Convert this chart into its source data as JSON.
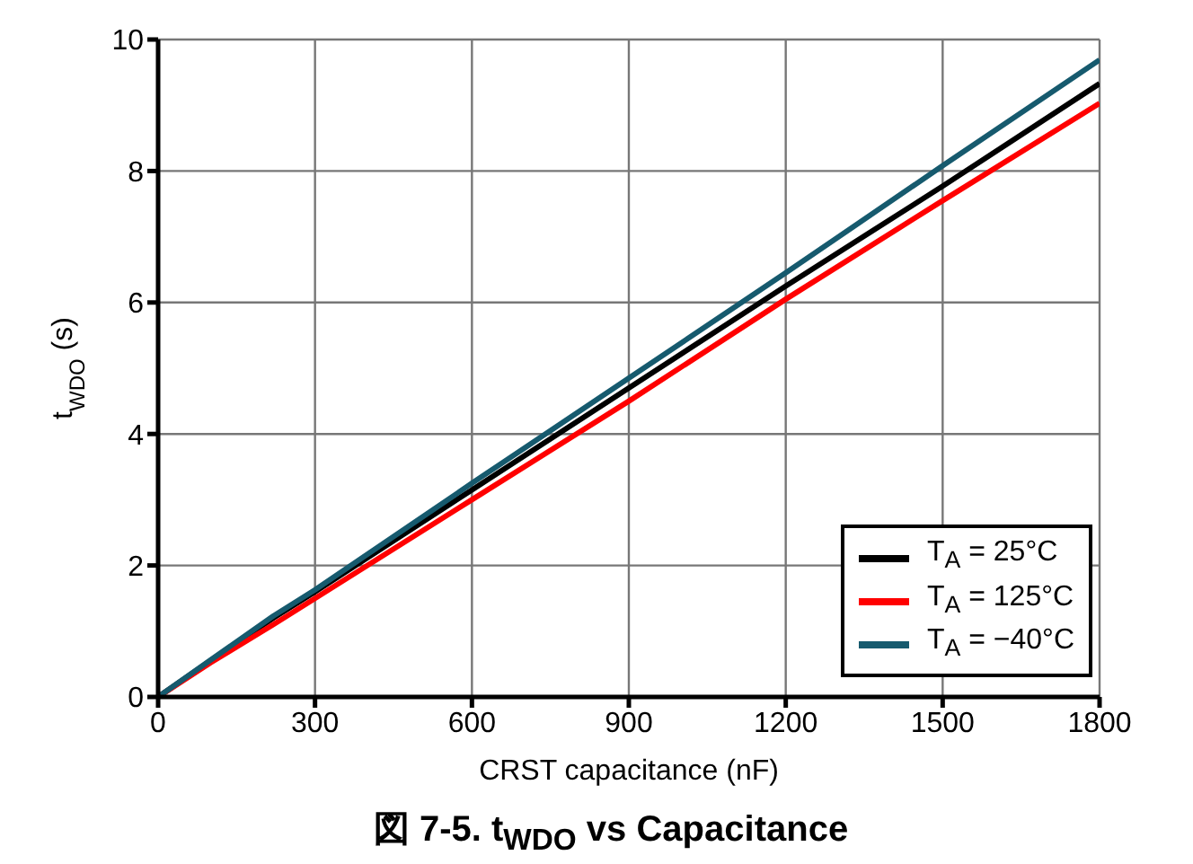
{
  "chart_data": {
    "type": "line",
    "title": "図 7-5. t$_{WDO}$ vs Capacitance",
    "xlabel": "CRST capacitance (nF)",
    "ylabel": "t$_{WDO}$ (s)",
    "x": [
      0,
      100,
      220,
      300,
      600,
      900,
      1200,
      1500,
      1800
    ],
    "series": [
      {
        "name": "T$_{A}$ = 25°C",
        "color": "#000000",
        "values": [
          0,
          0.55,
          1.2,
          1.6,
          3.15,
          4.7,
          6.25,
          7.77,
          9.33
        ]
      },
      {
        "name": "T$_{A}$ = 125°C",
        "color": "#ff0000",
        "values": [
          0,
          0.52,
          1.1,
          1.5,
          3.0,
          4.5,
          6.05,
          7.55,
          9.03
        ]
      },
      {
        "name": "T$_{A}$ = −40°C",
        "color": "#165a6e",
        "values": [
          0,
          0.56,
          1.23,
          1.63,
          3.25,
          4.85,
          6.45,
          8.08,
          9.69
        ]
      }
    ],
    "xlim": [
      0,
      1800
    ],
    "xticks": [
      0,
      300,
      600,
      900,
      1200,
      1500,
      1800
    ],
    "ylim": [
      0,
      10
    ],
    "yticks": [
      0,
      2,
      4,
      6,
      8,
      10
    ],
    "grid": true,
    "legend": "bottom right",
    "marker": "none",
    "line_style": "solid"
  }
}
